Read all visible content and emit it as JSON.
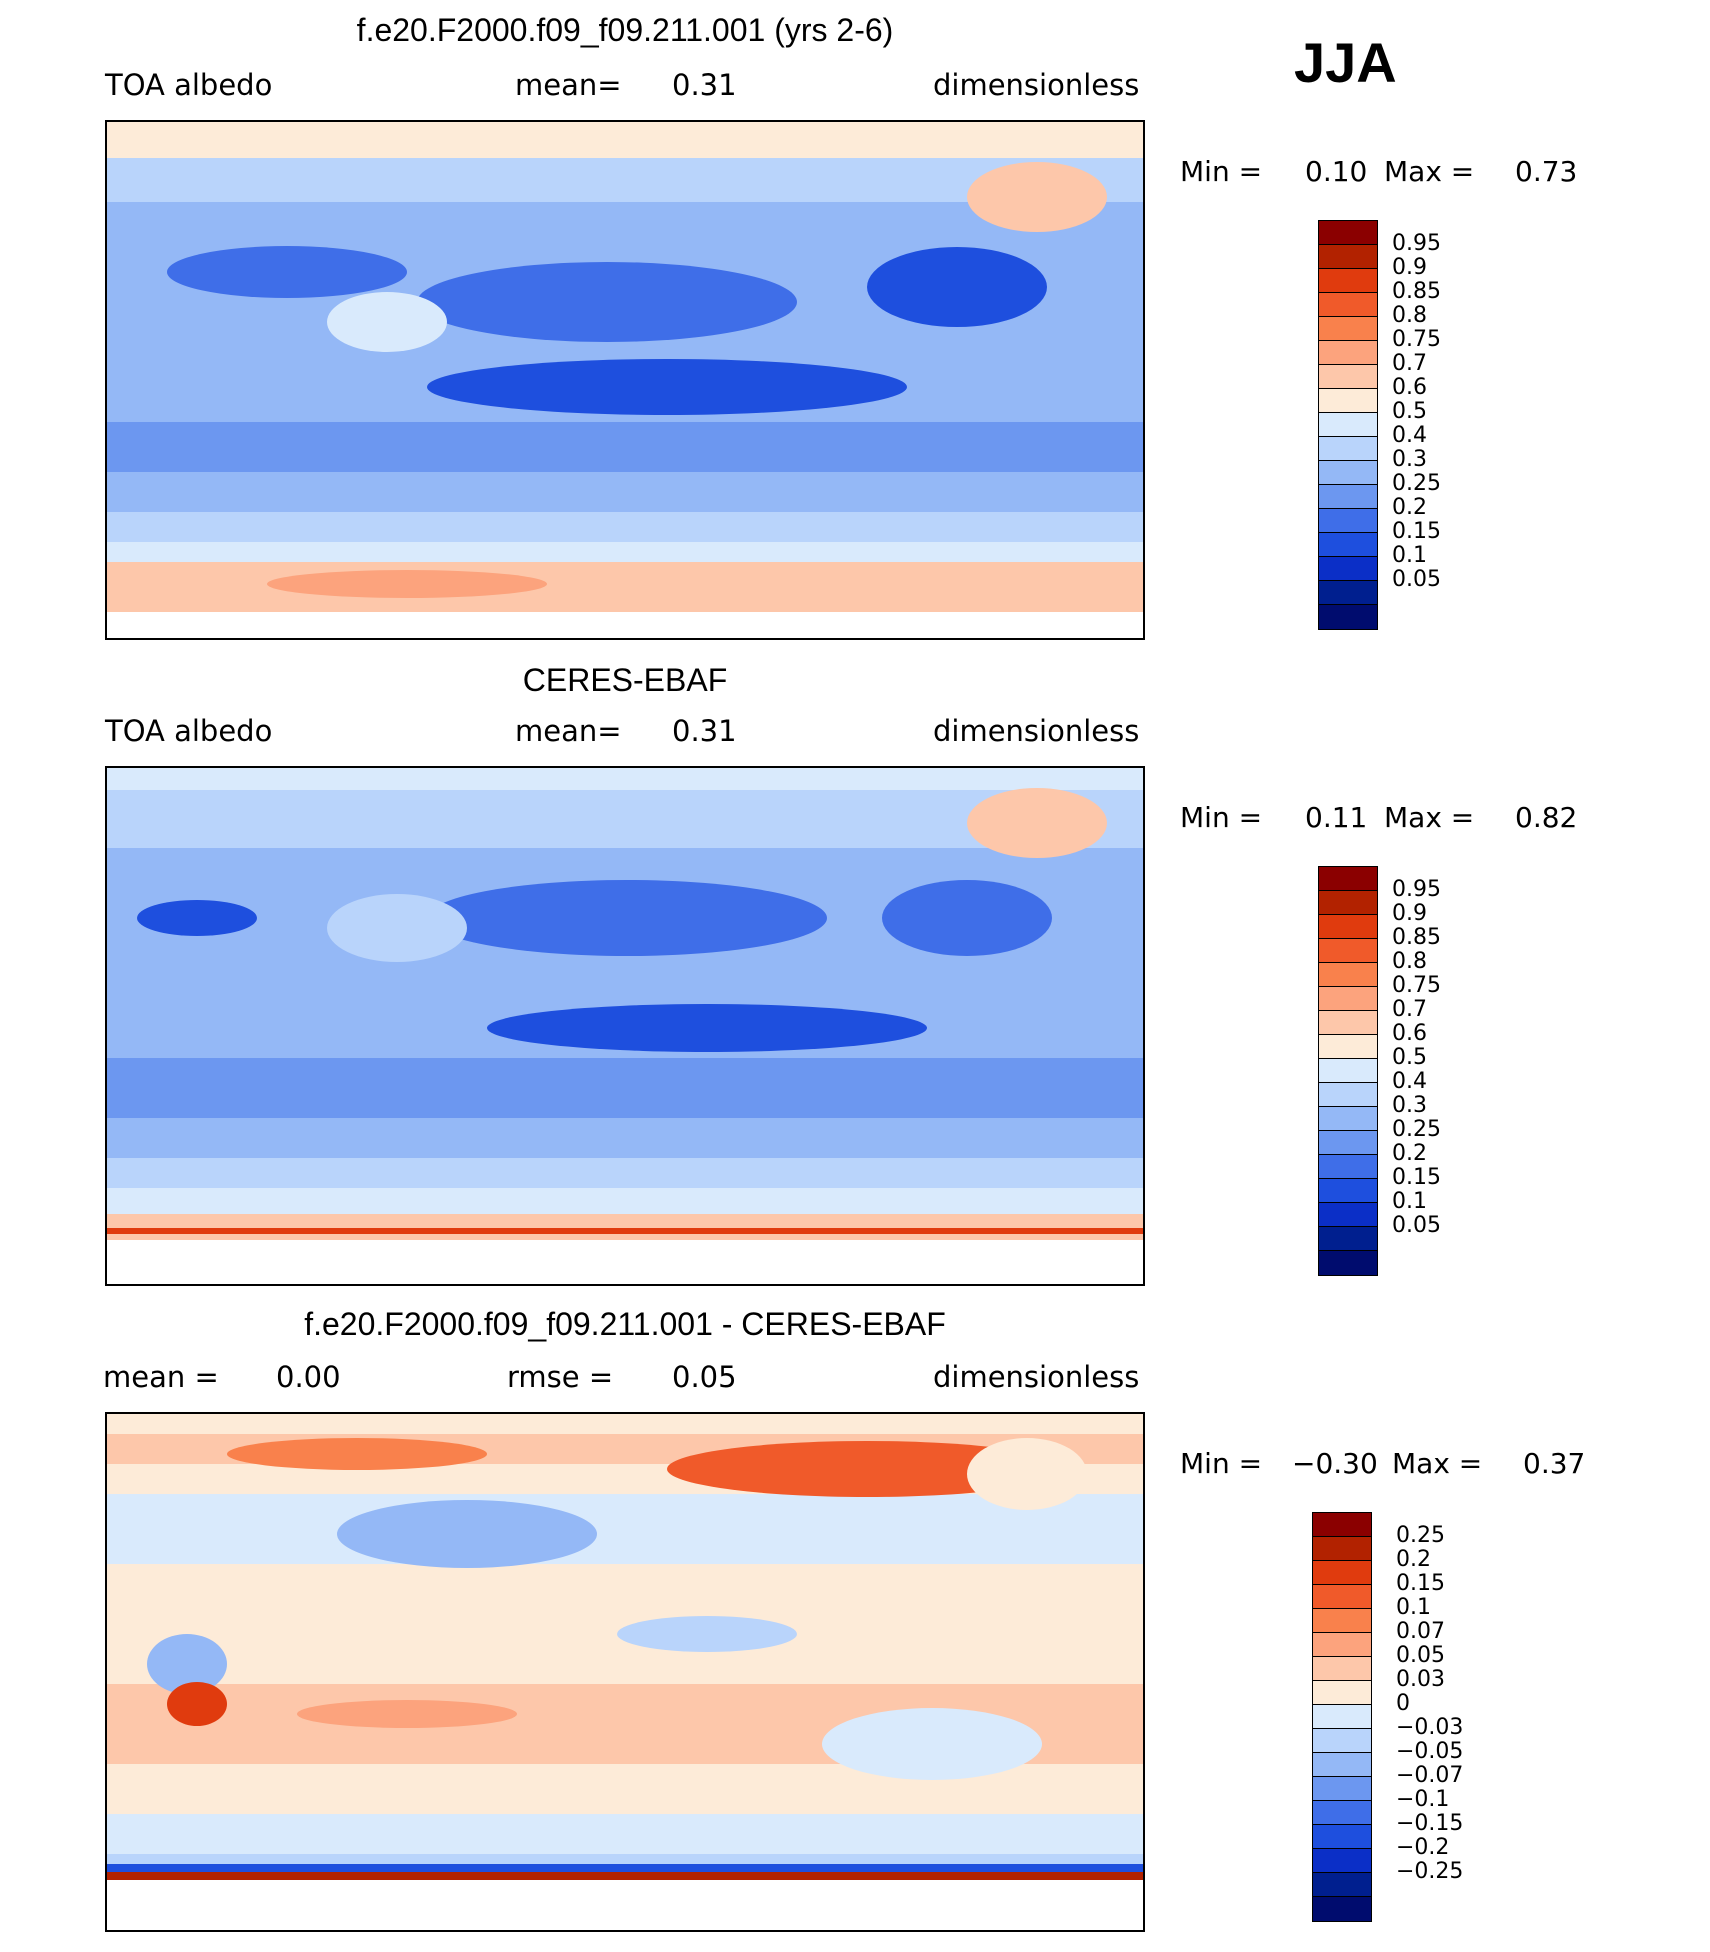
{
  "season": "JJA",
  "palette_abs": [
    "#8b0000",
    "#b22200",
    "#e03b0e",
    "#f05a2a",
    "#f9814c",
    "#fca37d",
    "#fdc7aa",
    "#fdebd8",
    "#d9eafc",
    "#b9d4fb",
    "#94b8f6",
    "#6c97f0",
    "#3f6ee8",
    "#1e4fde",
    "#0b2fc7",
    "#001f8f",
    "#000c6e"
  ],
  "palette_diff": [
    "#8b0000",
    "#b22200",
    "#e03b0e",
    "#f05a2a",
    "#f9814c",
    "#fca37d",
    "#fdc7aa",
    "#fdebd8",
    "#d9eafc",
    "#b9d4fb",
    "#94b8f6",
    "#6c97f0",
    "#3f6ee8",
    "#1e4fde",
    "#0b2fc7",
    "#001f8f",
    "#000c6e"
  ],
  "panels": [
    {
      "title": "f.e20.F2000.f09_f09.211.001 (yrs 2-6)",
      "left_label": "TOA  albedo",
      "center_label": "mean=",
      "center_value": "0.31",
      "right_label": "dimensionless",
      "min_label": "Min  =",
      "min_value": "0.10",
      "max_label": "Max  =",
      "max_value": "0.73",
      "colorbar_ticks": [
        "0.95",
        "0.9",
        "0.85",
        "0.8",
        "0.75",
        "0.7",
        "0.6",
        "0.5",
        "0.4",
        "0.3",
        "0.25",
        "0.2",
        "0.15",
        "0.1",
        "0.05"
      ]
    },
    {
      "title": "CERES-EBAF",
      "left_label": "TOA  albedo",
      "center_label": "mean=",
      "center_value": "0.31",
      "right_label": "dimensionless",
      "min_label": "Min  =",
      "min_value": "0.11",
      "max_label": "Max  =",
      "max_value": "0.82",
      "colorbar_ticks": [
        "0.95",
        "0.9",
        "0.85",
        "0.8",
        "0.75",
        "0.7",
        "0.6",
        "0.5",
        "0.4",
        "0.3",
        "0.25",
        "0.2",
        "0.15",
        "0.1",
        "0.05"
      ]
    },
    {
      "title": "f.e20.F2000.f09_f09.211.001 - CERES-EBAF",
      "left_label": "mean  =",
      "left_value": "0.00",
      "center_label": "rmse  =",
      "center_value": "0.05",
      "right_label": "dimensionless",
      "min_label": "Min  =",
      "min_value": "−0.30",
      "max_label": "Max  =",
      "max_value": "0.37",
      "colorbar_ticks": [
        "0.25",
        "0.2",
        "0.15",
        "0.1",
        "0.07",
        "0.05",
        "0.03",
        "0",
        "−0.03",
        "−0.05",
        "−0.07",
        "−0.1",
        "−0.15",
        "−0.2",
        "−0.25"
      ]
    }
  ]
}
